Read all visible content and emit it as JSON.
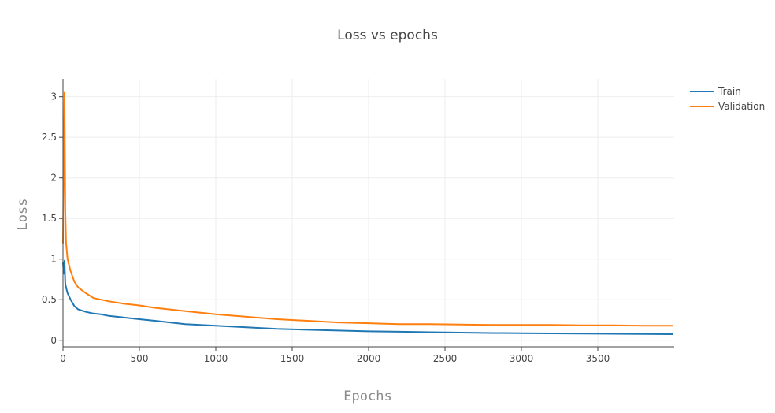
{
  "chart_data": {
    "type": "line",
    "title": "Loss vs epochs",
    "xlabel": "Epochs",
    "ylabel": "Loss",
    "xlim": [
      0,
      4000
    ],
    "ylim": [
      -0.08,
      3.22
    ],
    "x_ticks": [
      0,
      500,
      1000,
      1500,
      2000,
      2500,
      3000,
      3500
    ],
    "y_ticks": [
      0,
      0.5,
      1,
      1.5,
      2,
      2.5,
      3
    ],
    "y_tick_labels": [
      "0",
      "0.5",
      "1",
      "1.5",
      "2",
      "2.5",
      "3"
    ],
    "grid": true,
    "legend_position": "top-right",
    "series": [
      {
        "name": "Train",
        "color": "#1f77b4",
        "x": [
          0,
          5,
          10,
          15,
          20,
          30,
          50,
          75,
          100,
          150,
          200,
          250,
          300,
          400,
          500,
          600,
          700,
          800,
          900,
          1000,
          1200,
          1400,
          1600,
          1800,
          2000,
          2200,
          2400,
          2600,
          2800,
          3000,
          3200,
          3400,
          3600,
          3800,
          3990
        ],
        "y": [
          0.95,
          0.82,
          0.98,
          0.7,
          0.65,
          0.58,
          0.5,
          0.42,
          0.38,
          0.35,
          0.33,
          0.32,
          0.3,
          0.28,
          0.26,
          0.24,
          0.22,
          0.2,
          0.19,
          0.18,
          0.16,
          0.14,
          0.13,
          0.12,
          0.11,
          0.105,
          0.1,
          0.095,
          0.09,
          0.088,
          0.085,
          0.083,
          0.08,
          0.078,
          0.075
        ]
      },
      {
        "name": "Validation",
        "color": "#ff7f0e",
        "x": [
          0,
          5,
          10,
          15,
          20,
          30,
          50,
          75,
          100,
          150,
          200,
          250,
          300,
          400,
          500,
          600,
          700,
          800,
          900,
          1000,
          1200,
          1400,
          1600,
          1800,
          2000,
          2200,
          2400,
          2600,
          2800,
          3000,
          3200,
          3400,
          3600,
          3800,
          3990
        ],
        "y": [
          1.2,
          2.2,
          3.05,
          1.6,
          1.2,
          1.0,
          0.85,
          0.72,
          0.65,
          0.58,
          0.52,
          0.5,
          0.48,
          0.45,
          0.43,
          0.4,
          0.38,
          0.36,
          0.34,
          0.32,
          0.29,
          0.26,
          0.24,
          0.22,
          0.21,
          0.2,
          0.2,
          0.195,
          0.19,
          0.19,
          0.19,
          0.185,
          0.185,
          0.18,
          0.18
        ]
      }
    ]
  }
}
